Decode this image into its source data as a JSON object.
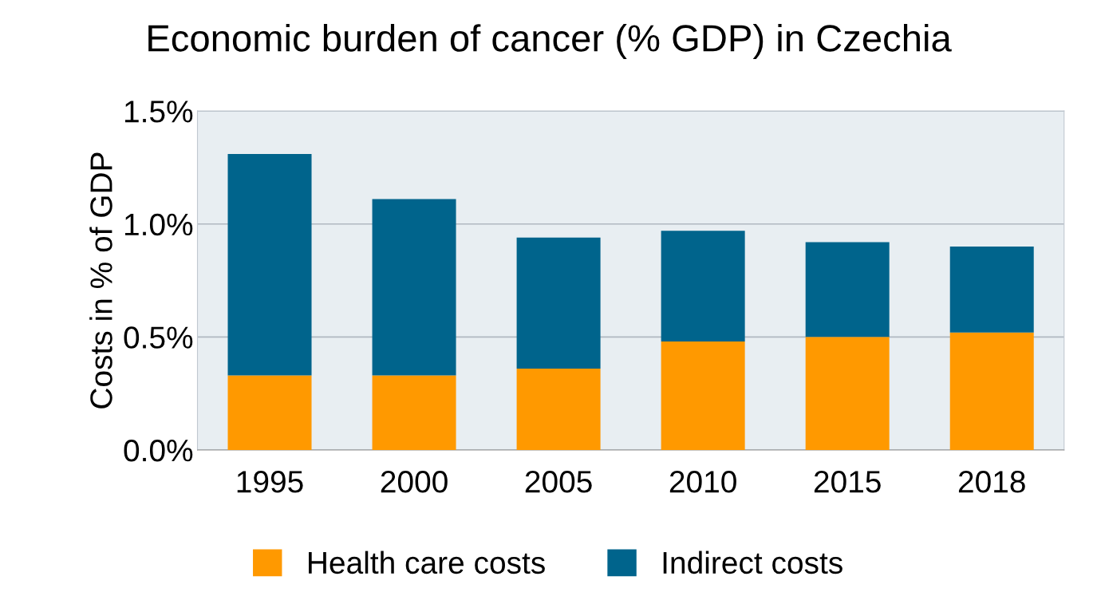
{
  "chart_data": {
    "type": "bar",
    "title": "Economic burden of cancer (% GDP) in Czechia",
    "ylabel": "Costs in % of GDP",
    "categories": [
      "1995",
      "2000",
      "2005",
      "2010",
      "2015",
      "2018"
    ],
    "stacked": true,
    "series": [
      {
        "name": "Health care costs",
        "color": "#ff9900",
        "values": [
          0.33,
          0.33,
          0.36,
          0.48,
          0.5,
          0.52
        ]
      },
      {
        "name": "Indirect costs",
        "color": "#00648c",
        "values": [
          0.98,
          0.78,
          0.58,
          0.49,
          0.42,
          0.38
        ]
      }
    ],
    "ylim": [
      0,
      1.5
    ],
    "yticks": [
      {
        "value": 0,
        "label": "0.0%"
      },
      {
        "value": 0.5,
        "label": "0.5%"
      },
      {
        "value": 1.0,
        "label": "1.0%"
      },
      {
        "value": 1.5,
        "label": "1.5%"
      }
    ],
    "grid": "y",
    "legend": "bottom"
  }
}
